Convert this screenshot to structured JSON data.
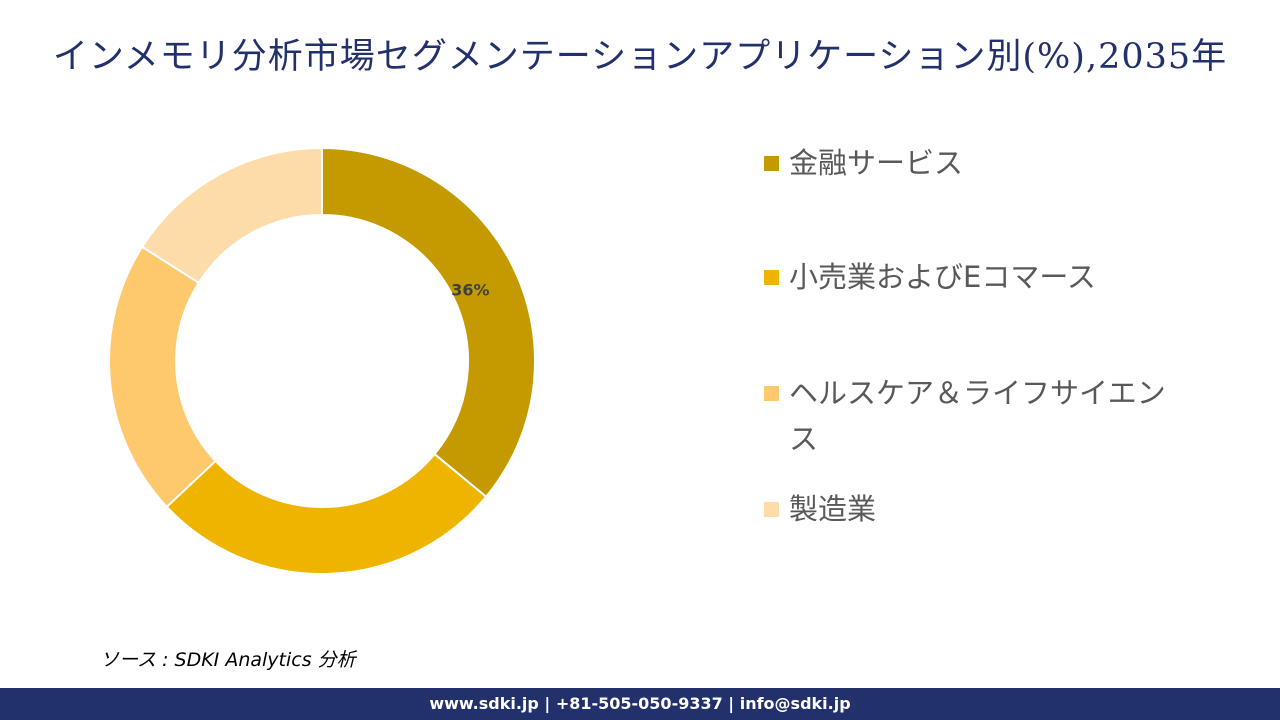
{
  "title": "インメモリ分析市場セグメンテーションアプリケーション別(%),2035年",
  "chart_data": {
    "type": "donut",
    "series": [
      {
        "name": "金融サービス",
        "value": 36,
        "color": "#c49a00",
        "label": "36%"
      },
      {
        "name": "小売業およびEコマース",
        "value": 27,
        "color": "#eeb400",
        "label": ""
      },
      {
        "name": "ヘルスケア＆ライフサイエンス",
        "value": 21,
        "color": "#fdc96c",
        "label": ""
      },
      {
        "name": "製造業",
        "value": 16,
        "color": "#fddcaa",
        "label": ""
      }
    ],
    "label_color": "#404040"
  },
  "source": "ソース : SDKI Analytics 分析",
  "footer": "www.sdki.jp | +81-505-050-9337 | info@sdki.jp"
}
